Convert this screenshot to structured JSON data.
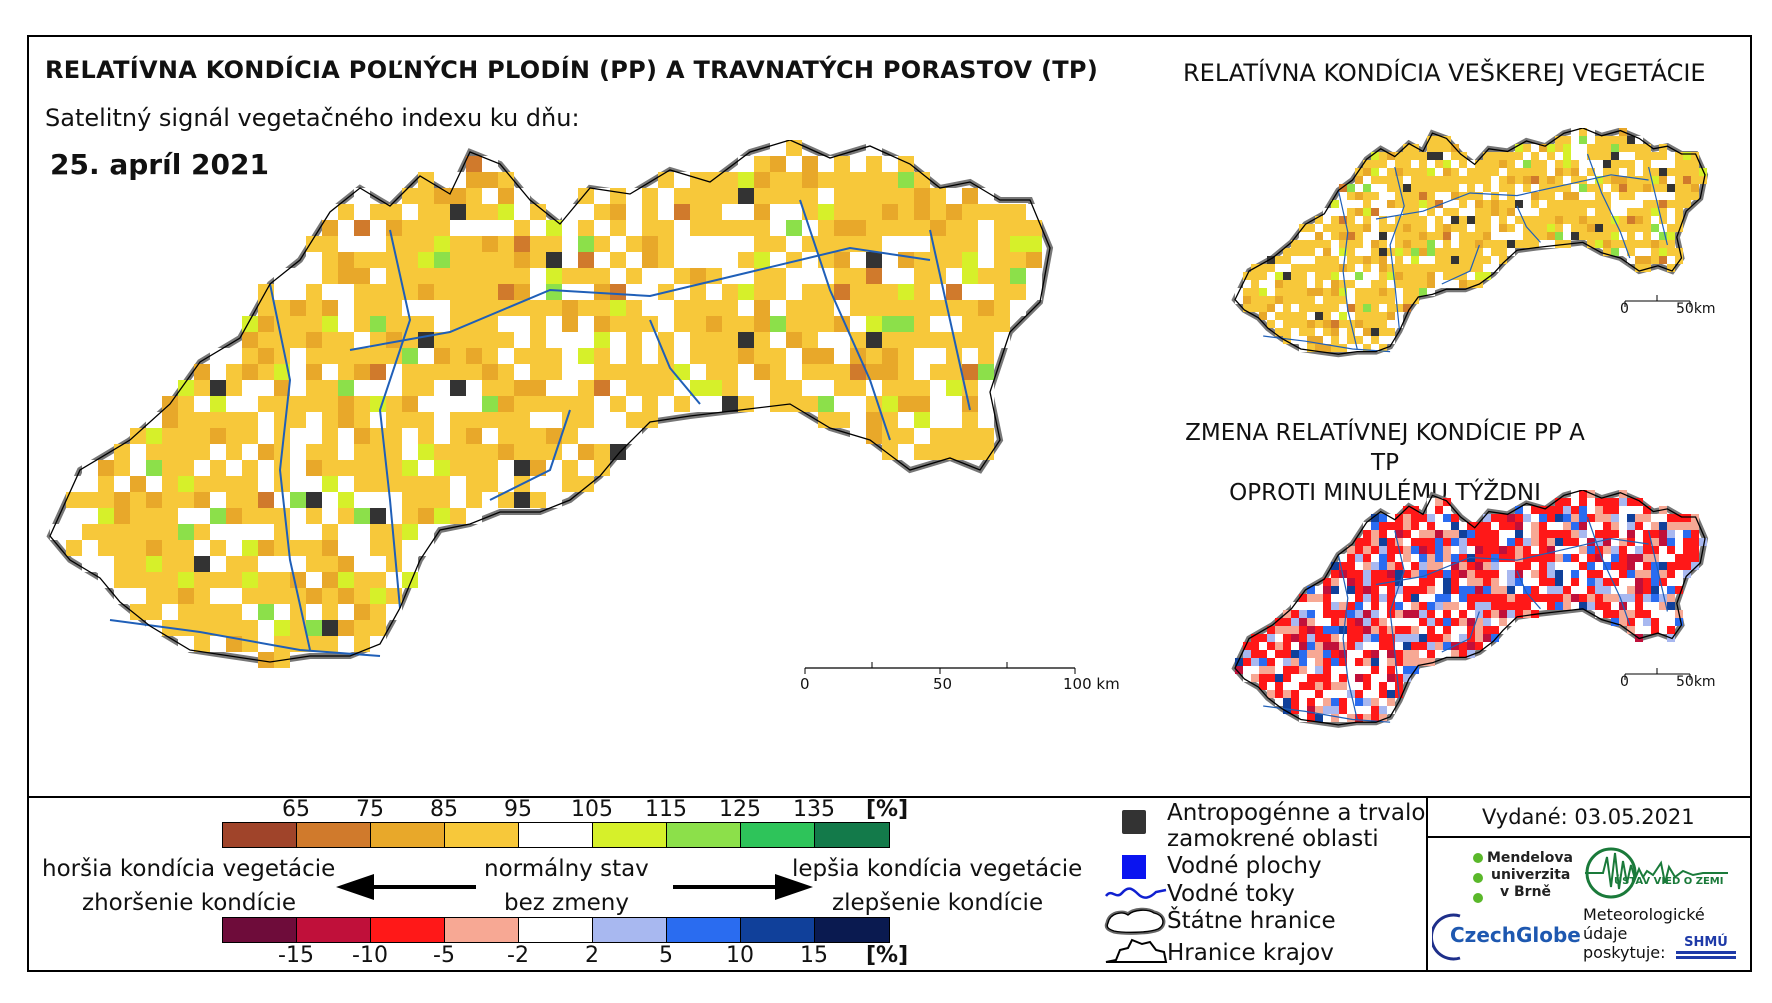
{
  "header": {
    "title": "RELATÍVNA KONDÍCIA POĽNÝCH PLODÍN (PP) A TRAVNATÝCH PORASTOV (TP)",
    "subtitle": "Satelitný signál vegetačného indexu ku dňu:",
    "date": "25. apríl 2021"
  },
  "inset_vegetation": {
    "title": "RELATÍVNA KONDÍCIA VEŠKEREJ VEGETÁCIE",
    "scale_0": "0",
    "scale_end": "50km"
  },
  "inset_change": {
    "title_line1": "ZMENA RELATÍVNEJ KONDÍCIE PP A TP",
    "title_line2": "OPROTI MINULÉMU TÝŽDNI",
    "scale_0": "0",
    "scale_end": "50km"
  },
  "main_map": {
    "scale_labels": [
      "0",
      "50",
      "100 km"
    ]
  },
  "legend_condition": {
    "labels": [
      "65",
      "75",
      "85",
      "95",
      "105",
      "115",
      "125",
      "135"
    ],
    "unit": "[%]",
    "colors": [
      "#a0442a",
      "#d07a2c",
      "#e8a82a",
      "#f7c83a",
      "#ffffff",
      "#d6f02a",
      "#8ce04a",
      "#2ec45a",
      "#137a4a"
    ]
  },
  "legend_change": {
    "labels": [
      "-15",
      "-10",
      "-5",
      "-2",
      "2",
      "5",
      "10",
      "15"
    ],
    "unit": "[%]",
    "colors": [
      "#6e0c3a",
      "#c0103a",
      "#ff1818",
      "#f7a894",
      "#ffffff",
      "#a8b8f0",
      "#2a6cf0",
      "#10409a",
      "#0a1a50"
    ]
  },
  "legend_text": {
    "worse_1": "horšia kondícia vegetácie",
    "worse_2": "zhoršenie kondície",
    "normal_1": "normálny stav",
    "normal_2": "bez zmeny",
    "better_1": "lepšia kondícia vegetácie",
    "better_2": "zlepšenie kondície"
  },
  "legend_symbols": {
    "anthropogenic_1": "Antropogénne a trvalo",
    "anthropogenic_2": "zamokrené oblasti",
    "water_areas": "Vodné plochy",
    "rivers": "Vodné toky",
    "state_border": "Štátne hranice",
    "region_border": "Hranice krajov"
  },
  "issued": "Vydané: 03.05.2021",
  "logos": {
    "mendel": [
      "Mendelova",
      "univerzita",
      "v Brně"
    ],
    "czechglobe": "CzechGlobe",
    "ustav": "ÚSTAV VIED O ZEMI",
    "meteo": [
      "Meteorologické",
      "údaje",
      "poskytuje:"
    ],
    "shmu": "SHMÚ"
  },
  "icons": [
    "left-arrow-icon",
    "right-arrow-icon",
    "anthropogenic-swatch-icon",
    "water-swatch-icon",
    "river-line-icon",
    "state-border-icon",
    "region-border-icon"
  ]
}
